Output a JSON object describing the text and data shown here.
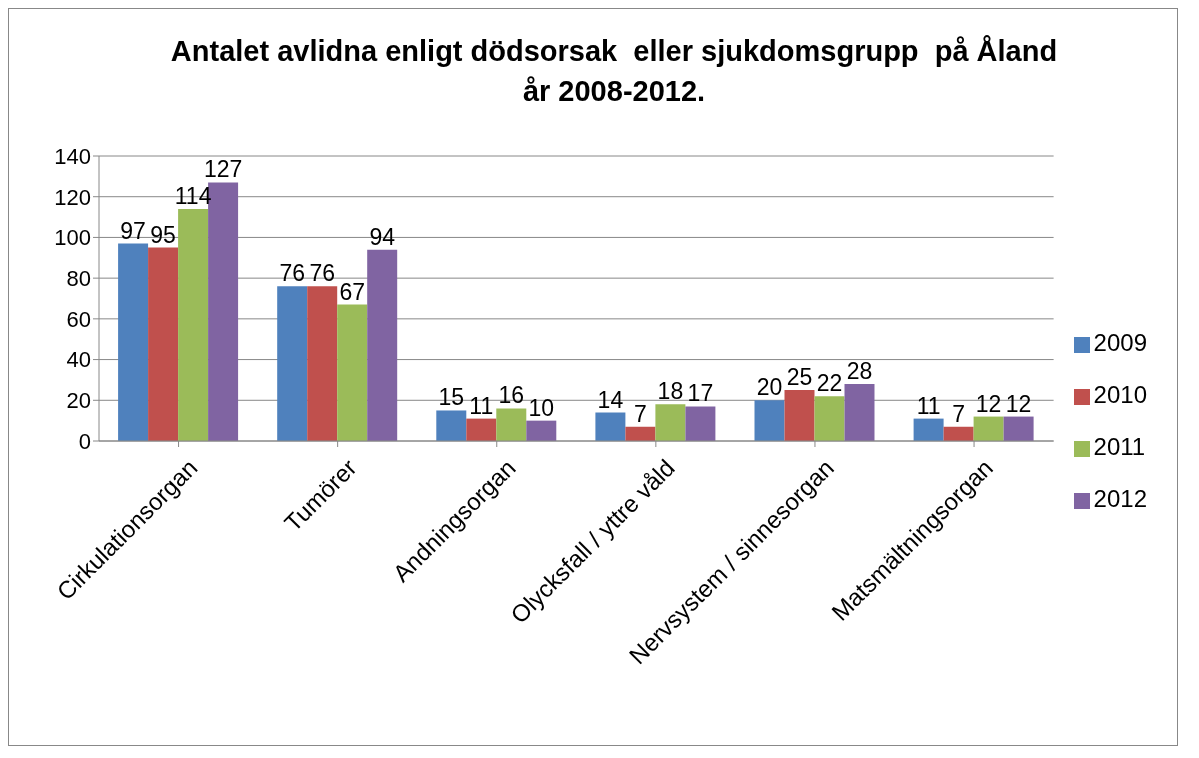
{
  "chart_data": {
    "type": "bar",
    "title": "Antalet avlidna enligt dödsorsak  eller sjukdomsgrupp  på Åland år 2008-2012.",
    "categories": [
      "Cirkulationsorgan",
      "Tumörer",
      "Andningsorgan",
      "Olycksfall / yttre våld",
      "Nervsystem / sinnesorgan",
      "Matsmältningsorgan"
    ],
    "series": [
      {
        "name": "2009",
        "color": "#4f81bd",
        "values": [
          97,
          76,
          15,
          14,
          20,
          11
        ]
      },
      {
        "name": "2010",
        "color": "#c0504d",
        "values": [
          95,
          76,
          11,
          7,
          25,
          7
        ]
      },
      {
        "name": "2011",
        "color": "#9bbb59",
        "values": [
          114,
          67,
          16,
          18,
          22,
          12
        ]
      },
      {
        "name": "2012",
        "color": "#8064a2",
        "values": [
          127,
          94,
          10,
          17,
          28,
          12
        ]
      }
    ],
    "ylim": [
      0,
      140
    ],
    "yticks": [
      0,
      20,
      40,
      60,
      80,
      100,
      120,
      140
    ],
    "grid": "y",
    "legend": "right",
    "data_labels": true
  }
}
